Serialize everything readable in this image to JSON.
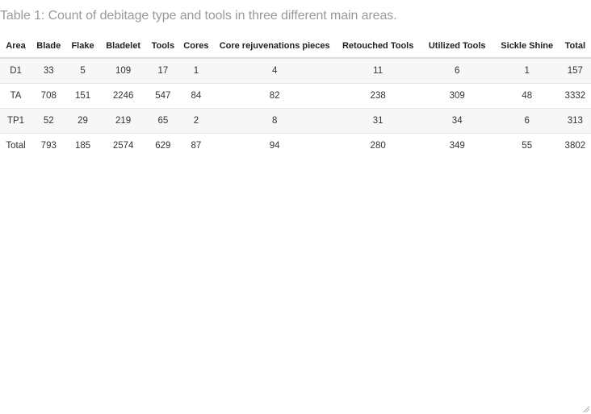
{
  "caption": "Table 1: Count of debitage type and tools in three different main areas.",
  "table": {
    "headers": [
      "Area",
      "Blade",
      "Flake",
      "Bladelet",
      "Tools",
      "Cores",
      "Core rejuvenations pieces",
      "Retouched Tools",
      "Utilized Tools",
      "Sickle Shine",
      "Total"
    ],
    "rows": [
      [
        "D1",
        "33",
        "5",
        "109",
        "17",
        "1",
        "4",
        "11",
        "6",
        "1",
        "157"
      ],
      [
        "TA",
        "708",
        "151",
        "2246",
        "547",
        "84",
        "82",
        "238",
        "309",
        "48",
        "3332"
      ],
      [
        "TP1",
        "52",
        "29",
        "219",
        "65",
        "2",
        "8",
        "31",
        "34",
        "6",
        "313"
      ],
      [
        "Total",
        "793",
        "185",
        "2574",
        "629",
        "87",
        "94",
        "280",
        "349",
        "55",
        "3802"
      ]
    ]
  }
}
